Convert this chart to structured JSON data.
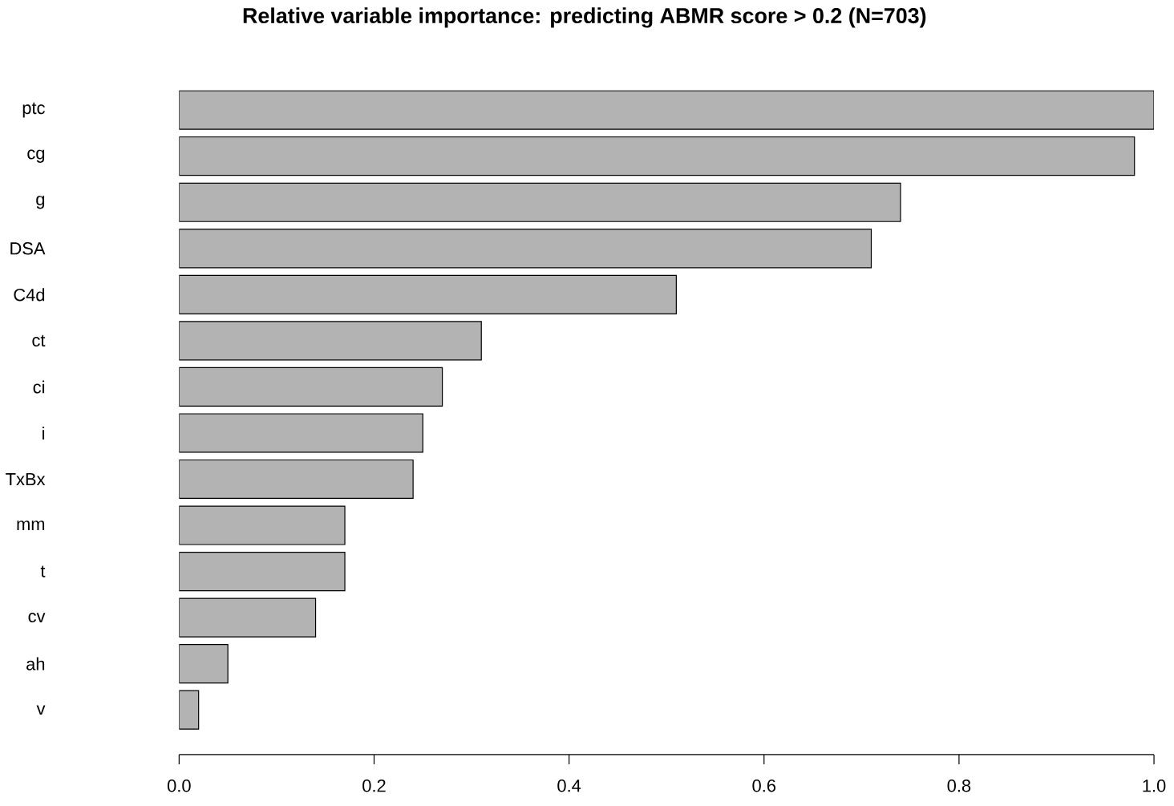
{
  "chart_data": {
    "type": "bar",
    "orientation": "horizontal",
    "title": "Relative variable importance: predicting ABMR score > 0.2 (N=703)",
    "categories": [
      "ptc",
      "cg",
      "g",
      "DSA",
      "C4d",
      "ct",
      "ci",
      "i",
      "TxBx",
      "mm",
      "t",
      "cv",
      "ah",
      "v"
    ],
    "values": [
      1.0,
      0.98,
      0.74,
      0.71,
      0.51,
      0.31,
      0.27,
      0.25,
      0.24,
      0.17,
      0.17,
      0.14,
      0.05,
      0.02
    ],
    "color": "#b3b3b3",
    "xlim": [
      0,
      1
    ],
    "xticks": [
      {
        "value": 0,
        "label": "0.0"
      },
      {
        "value": 0.2,
        "label": "0.2"
      },
      {
        "value": 0.4,
        "label": "0.4"
      },
      {
        "value": 0.6,
        "label": "0.6"
      },
      {
        "value": 0.8,
        "label": "0.8"
      },
      {
        "value": 1.0,
        "label": "1.0"
      }
    ],
    "grid": false
  }
}
